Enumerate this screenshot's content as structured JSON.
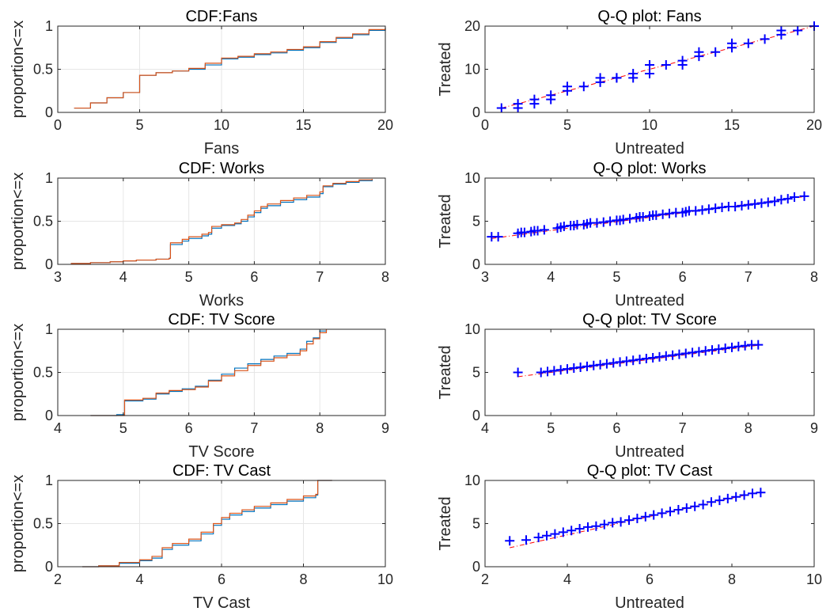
{
  "figure": {
    "background": "#ffffff"
  },
  "chart_data": [
    {
      "type": "line",
      "panel": "cdf-fans",
      "title": "CDF:Fans",
      "xlabel": "Fans",
      "ylabel": "proportion<=x",
      "xlim": [
        0,
        20
      ],
      "ylim": [
        0,
        1
      ],
      "xticks": [
        0,
        5,
        10,
        15,
        20
      ],
      "xtick_labels": [
        "0",
        "5",
        "10",
        "15",
        "20"
      ],
      "yticks": [
        0,
        0.5,
        1
      ],
      "ytick_labels": [
        "0",
        "0.5",
        "1"
      ],
      "grid": true,
      "series": [
        {
          "color": "#0072bd",
          "step": true,
          "x": [
            1,
            2,
            3,
            4,
            5,
            6,
            7,
            8,
            9,
            10,
            11,
            12,
            13,
            14,
            15,
            16,
            17,
            18,
            19,
            20
          ],
          "y": [
            0.05,
            0.11,
            0.17,
            0.23,
            0.43,
            0.46,
            0.48,
            0.5,
            0.55,
            0.62,
            0.64,
            0.67,
            0.69,
            0.72,
            0.75,
            0.81,
            0.86,
            0.9,
            0.95,
            0.98
          ]
        },
        {
          "color": "#d95319",
          "step": true,
          "x": [
            1,
            2,
            3,
            4,
            5,
            6,
            7,
            8,
            9,
            10,
            11,
            12,
            13,
            14,
            15,
            16,
            17,
            18,
            19,
            20
          ],
          "y": [
            0.05,
            0.11,
            0.17,
            0.23,
            0.43,
            0.46,
            0.48,
            0.51,
            0.57,
            0.63,
            0.65,
            0.68,
            0.7,
            0.73,
            0.76,
            0.82,
            0.87,
            0.91,
            0.96,
            0.98
          ]
        }
      ]
    },
    {
      "type": "scatter",
      "panel": "qq-fans",
      "title": "Q-Q plot: Fans",
      "xlabel": "Untreated",
      "ylabel": "Treated",
      "xlim": [
        0,
        20
      ],
      "ylim": [
        0,
        20
      ],
      "xticks": [
        0,
        5,
        10,
        15,
        20
      ],
      "xtick_labels": [
        "0",
        "5",
        "10",
        "15",
        "20"
      ],
      "yticks": [
        0,
        10,
        20
      ],
      "ytick_labels": [
        "0",
        "10",
        "20"
      ],
      "grid": false,
      "marker_color": "#0000ff",
      "reference_line": {
        "x": [
          1,
          20
        ],
        "y": [
          1,
          20
        ],
        "color": "#ff0000",
        "style": "dash-dot"
      },
      "x": [
        1,
        2,
        2,
        3,
        3,
        4,
        4,
        5,
        5,
        6,
        7,
        7,
        8,
        8,
        9,
        9,
        10,
        10,
        11,
        12,
        12,
        13,
        13,
        14,
        15,
        15,
        16,
        17,
        18,
        18,
        19,
        20
      ],
      "y": [
        1,
        1,
        2,
        2,
        3,
        3,
        4,
        5,
        6,
        6,
        7,
        8,
        8,
        8,
        8,
        9,
        9,
        11,
        11,
        11,
        12,
        13,
        14,
        14,
        15,
        16,
        16,
        17,
        18,
        19,
        19,
        20
      ]
    },
    {
      "type": "line",
      "panel": "cdf-works",
      "title": "CDF: Works",
      "xlabel": "Works",
      "ylabel": "proportion<=x",
      "xlim": [
        3,
        8
      ],
      "ylim": [
        0,
        1
      ],
      "xticks": [
        3,
        4,
        5,
        6,
        7,
        8
      ],
      "xtick_labels": [
        "3",
        "4",
        "5",
        "6",
        "7",
        "8"
      ],
      "yticks": [
        0,
        0.5,
        1
      ],
      "ytick_labels": [
        "0",
        "0.5",
        "1"
      ],
      "grid": true,
      "series": [
        {
          "color": "#0072bd",
          "step": true,
          "x": [
            3.2,
            3.5,
            3.8,
            4.0,
            4.2,
            4.5,
            4.7,
            4.72,
            4.9,
            5.0,
            5.2,
            5.3,
            5.35,
            5.5,
            5.7,
            5.8,
            5.9,
            6.0,
            6.1,
            6.2,
            6.4,
            6.6,
            6.8,
            7.0,
            7.05,
            7.2,
            7.4,
            7.6,
            7.8
          ],
          "y": [
            0.01,
            0.02,
            0.03,
            0.04,
            0.05,
            0.06,
            0.07,
            0.23,
            0.27,
            0.3,
            0.33,
            0.35,
            0.42,
            0.45,
            0.47,
            0.5,
            0.55,
            0.6,
            0.65,
            0.68,
            0.72,
            0.75,
            0.78,
            0.82,
            0.9,
            0.93,
            0.95,
            0.97,
            0.99
          ]
        },
        {
          "color": "#d95319",
          "step": true,
          "x": [
            3.2,
            3.5,
            3.8,
            4.0,
            4.2,
            4.5,
            4.7,
            4.72,
            4.9,
            5.0,
            5.2,
            5.3,
            5.35,
            5.5,
            5.7,
            5.8,
            5.9,
            6.0,
            6.1,
            6.2,
            6.4,
            6.6,
            6.8,
            7.0,
            7.05,
            7.2,
            7.4,
            7.6,
            7.8
          ],
          "y": [
            0.01,
            0.02,
            0.03,
            0.04,
            0.05,
            0.06,
            0.07,
            0.25,
            0.29,
            0.32,
            0.35,
            0.37,
            0.44,
            0.46,
            0.48,
            0.52,
            0.57,
            0.62,
            0.67,
            0.7,
            0.74,
            0.77,
            0.8,
            0.84,
            0.91,
            0.94,
            0.96,
            0.98,
            0.99
          ]
        }
      ]
    },
    {
      "type": "scatter",
      "panel": "qq-works",
      "title": "Q-Q plot: Works",
      "xlabel": "Untreated",
      "ylabel": "Treated",
      "xlim": [
        3,
        8
      ],
      "ylim": [
        0,
        10
      ],
      "xticks": [
        3,
        4,
        5,
        6,
        7,
        8
      ],
      "xtick_labels": [
        "3",
        "4",
        "5",
        "6",
        "7",
        "8"
      ],
      "yticks": [
        0,
        5,
        10
      ],
      "ytick_labels": [
        "0",
        "5",
        "10"
      ],
      "grid": false,
      "marker_color": "#0000ff",
      "reference_line": {
        "x": [
          3.1,
          7.9
        ],
        "y": [
          3.0,
          7.9
        ],
        "color": "#ff0000",
        "style": "dash-dot"
      },
      "x": [
        3.1,
        3.2,
        3.5,
        3.55,
        3.6,
        3.7,
        3.75,
        3.8,
        3.9,
        4.1,
        4.15,
        4.2,
        4.3,
        4.35,
        4.4,
        4.5,
        4.55,
        4.6,
        4.7,
        4.8,
        4.9,
        5.0,
        5.05,
        5.1,
        5.2,
        5.3,
        5.35,
        5.4,
        5.5,
        5.55,
        5.6,
        5.7,
        5.8,
        5.9,
        6.0,
        6.05,
        6.1,
        6.2,
        6.3,
        6.4,
        6.5,
        6.6,
        6.7,
        6.8,
        6.9,
        7.0,
        7.1,
        7.2,
        7.3,
        7.4,
        7.5,
        7.6,
        7.7,
        7.85
      ],
      "y": [
        3.2,
        3.2,
        3.6,
        3.7,
        3.7,
        3.8,
        3.9,
        3.9,
        4.0,
        4.2,
        4.3,
        4.4,
        4.5,
        4.5,
        4.6,
        4.6,
        4.7,
        4.8,
        4.8,
        4.9,
        5.0,
        5.1,
        5.1,
        5.2,
        5.3,
        5.4,
        5.5,
        5.5,
        5.6,
        5.7,
        5.7,
        5.8,
        5.9,
        6.0,
        6.0,
        6.1,
        6.2,
        6.2,
        6.3,
        6.4,
        6.5,
        6.6,
        6.7,
        6.7,
        6.8,
        6.9,
        7.0,
        7.1,
        7.2,
        7.3,
        7.5,
        7.6,
        7.8,
        7.9
      ]
    },
    {
      "type": "line",
      "panel": "cdf-tv-score",
      "title": "CDF: TV Score",
      "xlabel": "TV Score",
      "ylabel": "proportion<=x",
      "xlim": [
        4,
        9
      ],
      "ylim": [
        0,
        1
      ],
      "xticks": [
        4,
        5,
        6,
        7,
        8,
        9
      ],
      "xtick_labels": [
        "4",
        "5",
        "6",
        "7",
        "8",
        "9"
      ],
      "yticks": [
        0,
        0.5,
        1
      ],
      "ytick_labels": [
        "0",
        "0.5",
        "1"
      ],
      "grid": true,
      "series": [
        {
          "color": "#0072bd",
          "step": true,
          "x": [
            4.5,
            4.9,
            5.02,
            5.3,
            5.5,
            5.7,
            5.9,
            6.1,
            6.3,
            6.5,
            6.7,
            6.9,
            7.1,
            7.3,
            7.5,
            7.7,
            7.8,
            7.9,
            8.0,
            8.1
          ],
          "y": [
            0.0,
            0.01,
            0.17,
            0.19,
            0.25,
            0.28,
            0.31,
            0.34,
            0.41,
            0.48,
            0.55,
            0.6,
            0.65,
            0.69,
            0.72,
            0.77,
            0.86,
            0.9,
            0.98,
            1.0
          ]
        },
        {
          "color": "#d95319",
          "step": true,
          "x": [
            4.5,
            4.9,
            5.02,
            5.3,
            5.5,
            5.7,
            5.9,
            6.1,
            6.3,
            6.5,
            6.7,
            6.9,
            7.1,
            7.3,
            7.5,
            7.7,
            7.8,
            7.9,
            8.0,
            8.1
          ],
          "y": [
            0.0,
            0.0,
            0.18,
            0.2,
            0.26,
            0.29,
            0.3,
            0.33,
            0.4,
            0.46,
            0.52,
            0.58,
            0.63,
            0.67,
            0.7,
            0.75,
            0.83,
            0.89,
            0.96,
            1.0
          ]
        }
      ]
    },
    {
      "type": "scatter",
      "panel": "qq-tv-score",
      "title": "Q-Q plot: TV Score",
      "xlabel": "Untreated",
      "ylabel": "Treated",
      "xlim": [
        4,
        9
      ],
      "ylim": [
        0,
        10
      ],
      "xticks": [
        4,
        5,
        6,
        7,
        8,
        9
      ],
      "xtick_labels": [
        "4",
        "5",
        "6",
        "7",
        "8",
        "9"
      ],
      "yticks": [
        0,
        5,
        10
      ],
      "ytick_labels": [
        "0",
        "5",
        "10"
      ],
      "grid": false,
      "marker_color": "#0000ff",
      "reference_line": {
        "x": [
          4.5,
          8.2
        ],
        "y": [
          4.5,
          8.2
        ],
        "color": "#ff0000",
        "style": "dash-dot"
      },
      "x": [
        4.5,
        4.85,
        4.95,
        5.05,
        5.15,
        5.25,
        5.35,
        5.45,
        5.55,
        5.65,
        5.75,
        5.85,
        5.95,
        6.05,
        6.15,
        6.25,
        6.35,
        6.45,
        6.55,
        6.65,
        6.75,
        6.85,
        6.95,
        7.05,
        7.15,
        7.25,
        7.35,
        7.45,
        7.55,
        7.65,
        7.75,
        7.85,
        7.95,
        8.05,
        8.15
      ],
      "y": [
        5.0,
        5.0,
        5.1,
        5.2,
        5.3,
        5.4,
        5.5,
        5.6,
        5.7,
        5.8,
        5.9,
        6.0,
        6.1,
        6.2,
        6.3,
        6.4,
        6.5,
        6.6,
        6.7,
        6.8,
        6.9,
        7.0,
        7.1,
        7.2,
        7.3,
        7.4,
        7.5,
        7.6,
        7.7,
        7.8,
        7.9,
        8.0,
        8.1,
        8.2,
        8.2
      ]
    },
    {
      "type": "line",
      "panel": "cdf-tv-cast",
      "title": "CDF: TV Cast",
      "xlabel": "TV Cast",
      "ylabel": "proportion<=x",
      "xlim": [
        2,
        10
      ],
      "ylim": [
        0,
        1
      ],
      "xticks": [
        2,
        4,
        6,
        8,
        10
      ],
      "xtick_labels": [
        "2",
        "4",
        "6",
        "8",
        "10"
      ],
      "yticks": [
        0,
        0.5,
        1
      ],
      "ytick_labels": [
        "0",
        "0.5",
        "1"
      ],
      "grid": true,
      "series": [
        {
          "color": "#0072bd",
          "step": true,
          "x": [
            2.6,
            3.0,
            3.5,
            4.0,
            4.3,
            4.55,
            4.8,
            5.2,
            5.5,
            5.8,
            6.0,
            6.2,
            6.5,
            6.8,
            7.2,
            7.6,
            8.0,
            8.3,
            8.35,
            8.7
          ],
          "y": [
            0.0,
            0.01,
            0.04,
            0.07,
            0.1,
            0.2,
            0.25,
            0.3,
            0.38,
            0.48,
            0.55,
            0.6,
            0.64,
            0.68,
            0.72,
            0.76,
            0.8,
            0.83,
            1.0,
            1.0
          ]
        },
        {
          "color": "#d95319",
          "step": true,
          "x": [
            2.6,
            3.0,
            3.5,
            4.0,
            4.3,
            4.55,
            4.8,
            5.2,
            5.5,
            5.8,
            6.0,
            6.2,
            6.5,
            6.8,
            7.2,
            7.6,
            8.0,
            8.3,
            8.35,
            8.7
          ],
          "y": [
            0.0,
            0.01,
            0.05,
            0.08,
            0.12,
            0.22,
            0.27,
            0.32,
            0.4,
            0.5,
            0.57,
            0.62,
            0.66,
            0.7,
            0.74,
            0.78,
            0.82,
            0.84,
            1.0,
            1.0
          ]
        }
      ]
    },
    {
      "type": "scatter",
      "panel": "qq-tv-cast",
      "title": "Q-Q plot: TV Cast",
      "xlabel": "Untreated",
      "ylabel": "Treated",
      "xlim": [
        2,
        10
      ],
      "ylim": [
        0,
        10
      ],
      "xticks": [
        2,
        4,
        6,
        8,
        10
      ],
      "xtick_labels": [
        "2",
        "4",
        "6",
        "8",
        "10"
      ],
      "yticks": [
        0,
        5,
        10
      ],
      "ytick_labels": [
        "0",
        "5",
        "10"
      ],
      "grid": false,
      "marker_color": "#0000ff",
      "reference_line": {
        "x": [
          2.6,
          8.7
        ],
        "y": [
          2.2,
          8.7
        ],
        "color": "#ff0000",
        "style": "dash-dot"
      },
      "x": [
        2.6,
        3.0,
        3.3,
        3.5,
        3.7,
        3.9,
        4.1,
        4.3,
        4.5,
        4.7,
        4.9,
        5.1,
        5.3,
        5.5,
        5.7,
        5.9,
        6.1,
        6.3,
        6.5,
        6.7,
        6.9,
        7.1,
        7.3,
        7.5,
        7.7,
        7.9,
        8.1,
        8.3,
        8.5,
        8.7
      ],
      "y": [
        3.0,
        3.1,
        3.4,
        3.6,
        3.8,
        4.0,
        4.2,
        4.4,
        4.6,
        4.7,
        4.9,
        5.1,
        5.2,
        5.4,
        5.6,
        5.8,
        6.0,
        6.2,
        6.4,
        6.6,
        6.8,
        7.0,
        7.2,
        7.5,
        7.7,
        7.9,
        8.1,
        8.3,
        8.5,
        8.6
      ]
    }
  ]
}
